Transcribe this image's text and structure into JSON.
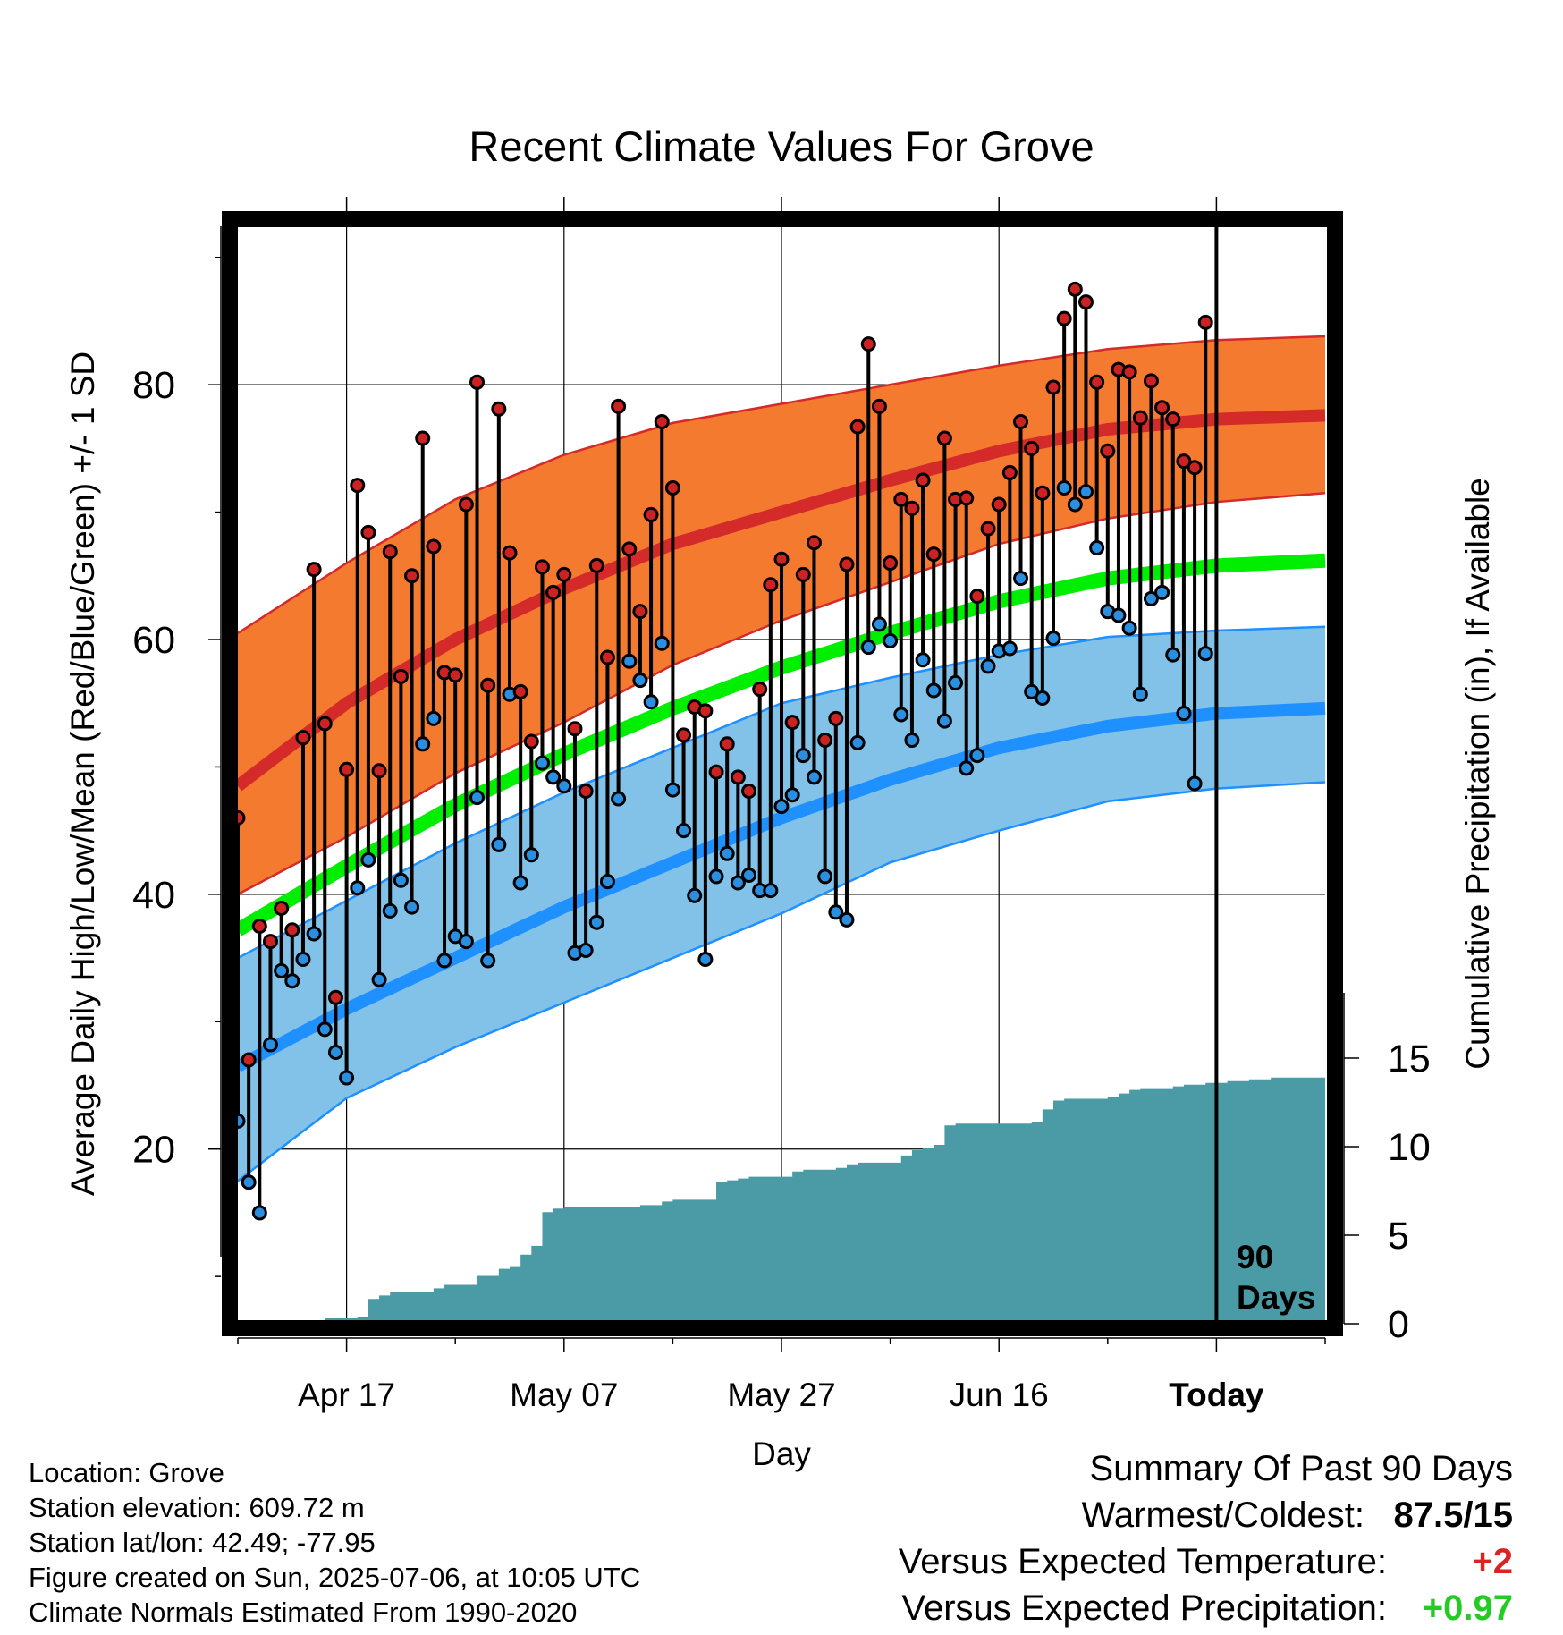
{
  "chart_data": {
    "type": "line",
    "title": "Recent Climate Values For Grove",
    "xlabel": "Day",
    "ylabel_left": "Average Daily High/Low/Mean (Red/Blue/Green) +/- 1 SD",
    "ylabel_right": "Cumulative Precipitation (in), If Available",
    "x_tick_labels": [
      "Apr 17",
      "May 07",
      "May 27",
      "Jun 16",
      "Today"
    ],
    "x_tick_days": [
      10,
      30,
      50,
      70,
      90
    ],
    "x_range_days": [
      0,
      100
    ],
    "y_left_ticks": [
      20,
      40,
      60,
      80
    ],
    "y_left_range": [
      6.5,
      93
    ],
    "y_right_ticks": [
      0,
      5,
      10,
      15
    ],
    "y_right_range": [
      0,
      50
    ],
    "today_marker_label": "90 Days",
    "grid": true,
    "colors": {
      "high_band": "#f47a30",
      "high_mean": "#d42a2a",
      "high_edge": "#d42a2a",
      "low_band": "#82c2e9",
      "low_mean": "#1e90ff",
      "low_edge": "#1e90ff",
      "mean_normal": "#00ee00",
      "precip": "#4a9ba6",
      "high_dot": "#cc2222",
      "low_dot": "#2a8fe0"
    },
    "normals": {
      "day": [
        0,
        10,
        20,
        30,
        40,
        50,
        60,
        70,
        80,
        90,
        100
      ],
      "high_upper": [
        60.5,
        66.0,
        71.0,
        74.5,
        77.0,
        78.5,
        80.0,
        81.5,
        82.8,
        83.5,
        83.8
      ],
      "high_mean": [
        48.5,
        55.0,
        60.0,
        64.0,
        67.5,
        70.0,
        72.5,
        74.8,
        76.5,
        77.3,
        77.6
      ],
      "high_lower": [
        40.0,
        44.5,
        49.5,
        53.5,
        58.0,
        61.5,
        64.5,
        67.5,
        69.5,
        70.8,
        71.5
      ],
      "mean_normal": [
        37.2,
        42.2,
        47.0,
        51.0,
        54.6,
        57.8,
        60.5,
        63.0,
        64.8,
        65.8,
        66.2
      ],
      "low_upper": [
        35.0,
        39.5,
        44.0,
        48.0,
        51.5,
        55.0,
        57.0,
        58.8,
        60.2,
        60.7,
        61.0
      ],
      "low_mean": [
        26.5,
        31.0,
        35.0,
        39.0,
        42.5,
        46.0,
        49.0,
        51.5,
        53.2,
        54.2,
        54.6
      ],
      "low_lower": [
        17.5,
        24.0,
        28.0,
        31.5,
        35.0,
        38.5,
        42.5,
        45.0,
        47.3,
        48.3,
        48.8
      ]
    },
    "daily_day": [
      0,
      1,
      2,
      3,
      4,
      5,
      6,
      7,
      8,
      9,
      10,
      11,
      12,
      13,
      14,
      15,
      16,
      17,
      18,
      19,
      20,
      21,
      22,
      23,
      24,
      25,
      26,
      27,
      28,
      29,
      30,
      31,
      32,
      33,
      34,
      35,
      36,
      37,
      38,
      39,
      40,
      41,
      42,
      43,
      44,
      45,
      46,
      47,
      48,
      49,
      50,
      51,
      52,
      53,
      54,
      55,
      56,
      57,
      58,
      59,
      60,
      61,
      62,
      63,
      64,
      65,
      66,
      67,
      68,
      69,
      70,
      71,
      72,
      73,
      74,
      75,
      76,
      77,
      78,
      79,
      80,
      81,
      82,
      83,
      84,
      85,
      86,
      87,
      88,
      89
    ],
    "daily_high": [
      46.0,
      27.0,
      37.5,
      36.3,
      38.9,
      37.2,
      52.3,
      65.5,
      53.4,
      31.9,
      49.8,
      72.1,
      68.4,
      49.7,
      66.9,
      57.1,
      65.0,
      75.8,
      67.3,
      57.4,
      57.2,
      70.6,
      80.2,
      56.4,
      78.1,
      66.8,
      55.9,
      52.0,
      65.7,
      63.7,
      65.1,
      53.0,
      48.1,
      65.8,
      58.6,
      78.3,
      67.1,
      62.2,
      69.8,
      77.1,
      71.9,
      52.5,
      54.7,
      54.4,
      49.6,
      51.8,
      49.2,
      48.1,
      56.1,
      64.3,
      66.3,
      53.5,
      65.1,
      67.6,
      52.1,
      53.8,
      65.9,
      76.7,
      83.2,
      78.3,
      66.0,
      71.0,
      70.3,
      72.5,
      66.7,
      75.8,
      71.0,
      71.1,
      63.4,
      68.7,
      70.6,
      73.1,
      77.1,
      75.0,
      71.5,
      79.8,
      85.2,
      87.5,
      86.5,
      80.2,
      74.8,
      81.2,
      81.0,
      77.4,
      80.3,
      78.2,
      77.3,
      74.0,
      73.5,
      84.9
    ],
    "daily_low": [
      22.2,
      17.4,
      15.0,
      28.2,
      34.0,
      33.2,
      34.9,
      36.9,
      29.4,
      27.6,
      25.6,
      40.5,
      42.7,
      33.3,
      38.7,
      41.1,
      39.0,
      51.8,
      53.8,
      34.8,
      36.7,
      36.3,
      47.6,
      34.8,
      43.9,
      55.7,
      40.9,
      43.1,
      50.3,
      49.2,
      48.5,
      35.4,
      35.6,
      37.8,
      41.0,
      47.5,
      58.3,
      56.8,
      55.1,
      59.7,
      48.2,
      45.0,
      39.9,
      34.9,
      41.4,
      43.2,
      40.9,
      41.5,
      40.3,
      40.3,
      46.9,
      47.8,
      50.9,
      49.2,
      41.4,
      38.6,
      38.0,
      51.9,
      59.4,
      61.2,
      59.9,
      54.1,
      52.1,
      58.4,
      56.0,
      53.6,
      56.6,
      49.9,
      50.9,
      57.9,
      59.1,
      59.3,
      64.8,
      55.9,
      55.4,
      60.1,
      71.9,
      70.6,
      71.6,
      67.2,
      62.2,
      61.9,
      60.9,
      55.7,
      63.2,
      63.7,
      58.8,
      54.2,
      48.7,
      58.9
    ],
    "precip_day": [
      0,
      6,
      7,
      8,
      10,
      11,
      12,
      13,
      14,
      15,
      16,
      17,
      18,
      19,
      20,
      21,
      22,
      23,
      24,
      25,
      26,
      27,
      28,
      29,
      30,
      31,
      32,
      33,
      34,
      35,
      36,
      37,
      38,
      39,
      40,
      41,
      42,
      43,
      44,
      45,
      46,
      47,
      48,
      49,
      50,
      51,
      52,
      53,
      54,
      55,
      56,
      57,
      58,
      59,
      60,
      61,
      62,
      63,
      64,
      65,
      66,
      67,
      68,
      69,
      70,
      71,
      72,
      73,
      74,
      75,
      76,
      77,
      78,
      79,
      80,
      81,
      82,
      83,
      84,
      85,
      86,
      87,
      88,
      89,
      90,
      91,
      92,
      93,
      94,
      95,
      96,
      97,
      98,
      99,
      100
    ],
    "precip_cum": [
      0.0,
      0.0,
      0.2,
      0.3,
      0.3,
      0.4,
      1.4,
      1.6,
      1.8,
      1.8,
      1.8,
      1.8,
      2.0,
      2.2,
      2.2,
      2.2,
      2.7,
      2.7,
      3.1,
      3.2,
      3.9,
      4.4,
      6.3,
      6.5,
      6.6,
      6.6,
      6.6,
      6.6,
      6.6,
      6.6,
      6.6,
      6.7,
      6.7,
      6.9,
      7.0,
      7.0,
      7.0,
      7.0,
      8.0,
      8.1,
      8.2,
      8.3,
      8.3,
      8.3,
      8.3,
      8.6,
      8.7,
      8.7,
      8.7,
      8.8,
      9.0,
      9.1,
      9.1,
      9.1,
      9.1,
      9.5,
      9.8,
      9.9,
      10.1,
      11.2,
      11.3,
      11.3,
      11.3,
      11.3,
      11.3,
      11.3,
      11.3,
      11.4,
      12.1,
      12.6,
      12.7,
      12.7,
      12.7,
      12.7,
      12.8,
      13.0,
      13.2,
      13.3,
      13.3,
      13.3,
      13.4,
      13.5,
      13.5,
      13.6,
      13.6,
      13.7,
      13.7,
      13.8,
      13.8,
      13.9,
      13.9,
      13.9,
      13.9,
      13.9,
      13.9
    ]
  },
  "info": {
    "location": "Location: Grove",
    "elevation": "Station elevation: 609.72 m",
    "latlon": "Station lat/lon: 42.49; -77.95",
    "created": "Figure created on Sun, 2025-07-06, at 10:05 UTC",
    "normals": "Climate Normals Estimated From 1990-2020"
  },
  "summary": {
    "title": "Summary Of Past 90 Days",
    "warmest_label": "Warmest/Coldest:",
    "warmest_value": "87.5/15",
    "temp_label": "Versus Expected Temperature:",
    "temp_value": "+2",
    "temp_color": "#dd2222",
    "precip_label": "Versus Expected Precipitation:",
    "precip_value": "+0.97",
    "precip_color": "#22cc22"
  }
}
